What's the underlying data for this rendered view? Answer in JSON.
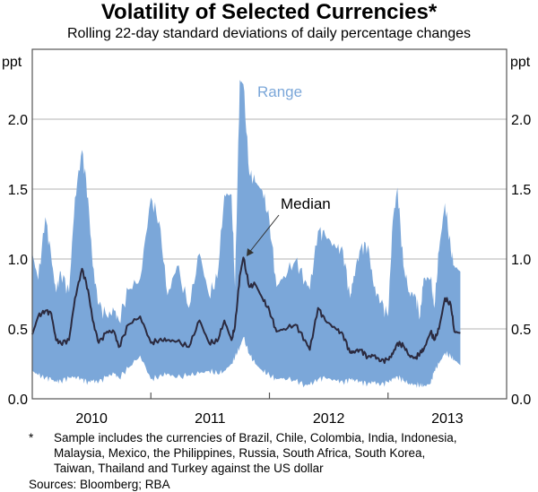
{
  "chart_data": {
    "type": "area",
    "title": "Volatility of Selected Currencies*",
    "subtitle": "Rolling 22-day standard deviations of daily percentage changes",
    "ylabel_left": "ppt",
    "ylabel_right": "ppt",
    "ylim": [
      0,
      2.5
    ],
    "yticks": [
      0,
      0.5,
      1.0,
      1.5,
      2.0
    ],
    "ytick_labels": [
      "0.0",
      "0.5",
      "1.0",
      "1.5",
      "2.0"
    ],
    "xlim": [
      2010.0,
      2014.0
    ],
    "xticks_boundaries": [
      2011,
      2012,
      2013
    ],
    "xtick_labels": [
      "2010",
      "2011",
      "2012",
      "2013"
    ],
    "grid": true,
    "colors": {
      "range": "#7ba7d9",
      "median": "#2b2a3f",
      "grid": "#b3b3b3",
      "range_label": "#7ba7d9"
    },
    "annotations": {
      "range": "Range",
      "median": "Median"
    },
    "x": [
      2010.0,
      2010.05,
      2010.11,
      2010.16,
      2010.2,
      2010.24,
      2010.31,
      2010.36,
      2010.42,
      2010.47,
      2010.51,
      2010.56,
      2010.63,
      2010.69,
      2010.73,
      2010.81,
      2010.91,
      2011.0,
      2011.07,
      2011.14,
      2011.22,
      2011.32,
      2011.41,
      2011.49,
      2011.56,
      2011.62,
      2011.68,
      2011.71,
      2011.75,
      2011.78,
      2011.83,
      2011.88,
      2011.94,
      2012.0,
      2012.06,
      2012.12,
      2012.22,
      2012.3,
      2012.34,
      2012.41,
      2012.47,
      2012.56,
      2012.62,
      2012.68,
      2012.71,
      2012.77,
      2012.83,
      2012.88,
      2012.94,
      2013.0,
      2013.04,
      2013.08,
      2013.13,
      2013.18,
      2013.23,
      2013.27,
      2013.3,
      2013.36,
      2013.39,
      2013.43,
      2013.48,
      2013.53,
      2013.56,
      2013.61
    ],
    "series": [
      {
        "name": "Range high",
        "values": [
          1.04,
          0.85,
          1.3,
          1.01,
          0.76,
          0.91,
          0.76,
          1.44,
          1.78,
          1.44,
          0.95,
          0.67,
          0.59,
          0.63,
          0.56,
          0.78,
          0.86,
          1.44,
          1.27,
          0.74,
          0.95,
          0.65,
          1.04,
          0.74,
          0.86,
          1.46,
          1.46,
          0.8,
          2.28,
          2.25,
          1.61,
          1.55,
          1.49,
          1.27,
          0.8,
          0.88,
          0.99,
          0.85,
          0.78,
          1.2,
          1.17,
          1.08,
          1.06,
          0.72,
          0.88,
          1.08,
          1.1,
          0.8,
          0.69,
          0.59,
          1.27,
          1.51,
          0.95,
          0.76,
          0.74,
          0.59,
          0.86,
          0.86,
          0.65,
          1.06,
          1.4,
          1.06,
          0.95,
          0.91
        ]
      },
      {
        "name": "Median",
        "values": [
          0.46,
          0.59,
          0.63,
          0.61,
          0.42,
          0.4,
          0.42,
          0.72,
          0.93,
          0.78,
          0.56,
          0.4,
          0.48,
          0.48,
          0.37,
          0.53,
          0.59,
          0.4,
          0.42,
          0.42,
          0.41,
          0.37,
          0.56,
          0.4,
          0.41,
          0.56,
          0.42,
          0.52,
          0.88,
          1.01,
          0.8,
          0.82,
          0.72,
          0.63,
          0.48,
          0.5,
          0.53,
          0.42,
          0.35,
          0.65,
          0.56,
          0.5,
          0.46,
          0.33,
          0.34,
          0.35,
          0.3,
          0.31,
          0.27,
          0.28,
          0.32,
          0.4,
          0.38,
          0.31,
          0.29,
          0.33,
          0.35,
          0.48,
          0.42,
          0.5,
          0.72,
          0.67,
          0.48,
          0.47
        ]
      },
      {
        "name": "Range low",
        "values": [
          0.2,
          0.17,
          0.15,
          0.14,
          0.12,
          0.13,
          0.15,
          0.16,
          0.14,
          0.12,
          0.13,
          0.12,
          0.16,
          0.18,
          0.15,
          0.22,
          0.31,
          0.14,
          0.16,
          0.18,
          0.15,
          0.17,
          0.18,
          0.2,
          0.18,
          0.2,
          0.25,
          0.3,
          0.37,
          0.44,
          0.32,
          0.25,
          0.2,
          0.17,
          0.14,
          0.15,
          0.13,
          0.1,
          0.1,
          0.14,
          0.15,
          0.13,
          0.12,
          0.14,
          0.14,
          0.12,
          0.11,
          0.12,
          0.1,
          0.12,
          0.14,
          0.16,
          0.13,
          0.11,
          0.1,
          0.1,
          0.09,
          0.11,
          0.2,
          0.25,
          0.33,
          0.3,
          0.28,
          0.24
        ]
      }
    ]
  },
  "footnote": {
    "marker": "*",
    "lines": [
      "Sample includes the currencies of Brazil, Chile, Colombia, India, Indonesia,",
      "Malaysia, Mexico, the Philippines, Russia, South Africa, South Korea,",
      "Taiwan, Thailand and Turkey against the US dollar"
    ],
    "sources": "Sources: Bloomberg; RBA"
  }
}
